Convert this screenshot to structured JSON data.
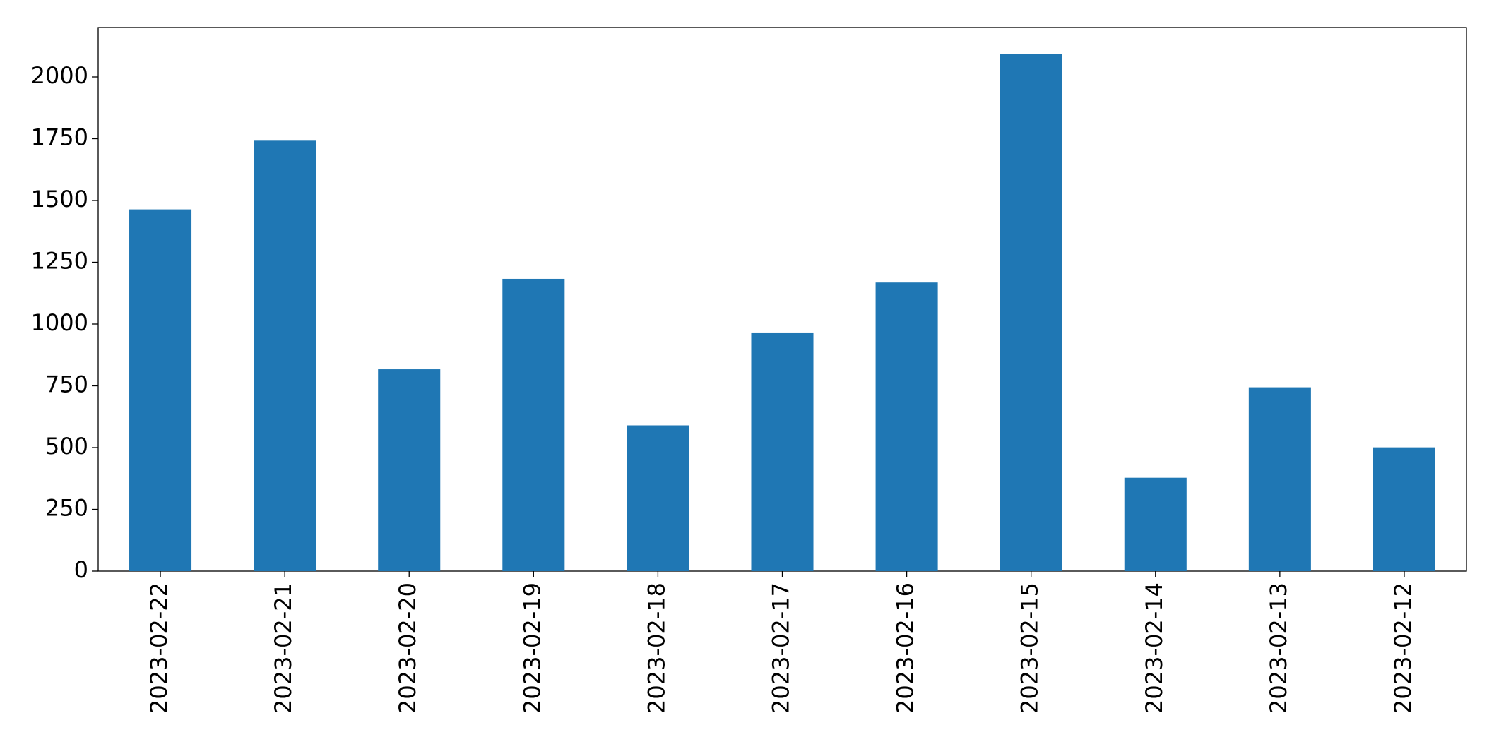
{
  "chart_data": {
    "type": "bar",
    "categories": [
      "2023-02-22",
      "2023-02-21",
      "2023-02-20",
      "2023-02-19",
      "2023-02-18",
      "2023-02-17",
      "2023-02-16",
      "2023-02-15",
      "2023-02-14",
      "2023-02-13",
      "2023-02-12"
    ],
    "values": [
      1464,
      1742,
      817,
      1183,
      590,
      963,
      1168,
      2092,
      378,
      744,
      501
    ],
    "color": "#1f77b4",
    "ylim": [
      0,
      2200
    ],
    "yticks": [
      0,
      250,
      500,
      750,
      1000,
      1250,
      1500,
      1750,
      2000
    ],
    "grid": false
  }
}
